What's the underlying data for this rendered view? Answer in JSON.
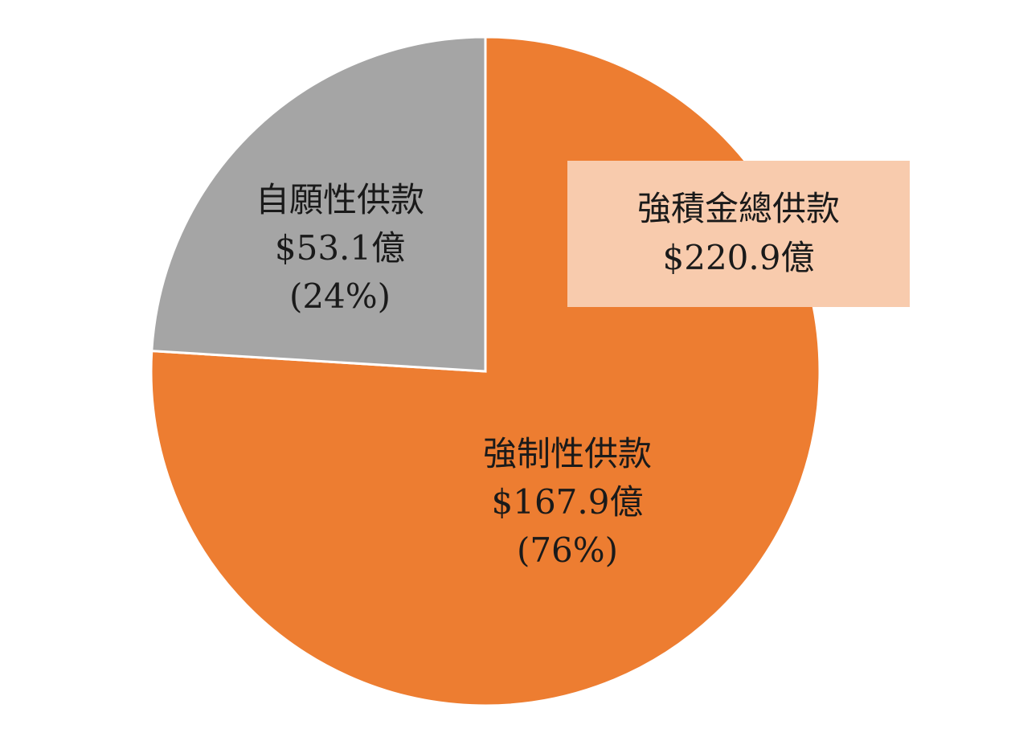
{
  "chart_data": {
    "type": "pie",
    "slices": [
      {
        "label": "強制性供款",
        "value": 167.9,
        "value_text": "$167.9億",
        "percent": 76,
        "percent_text": "(76%)",
        "color": "#ed7d31"
      },
      {
        "label": "自願性供款",
        "value": 53.1,
        "value_text": "$53.1億",
        "percent": 24,
        "percent_text": "(24%)",
        "color": "#a5a5a5"
      }
    ],
    "total": {
      "label": "強積金總供款",
      "value": 220.9,
      "value_text": "$220.9億",
      "box_color": "#f8cbad"
    },
    "slice_border_color": "#ffffff"
  }
}
